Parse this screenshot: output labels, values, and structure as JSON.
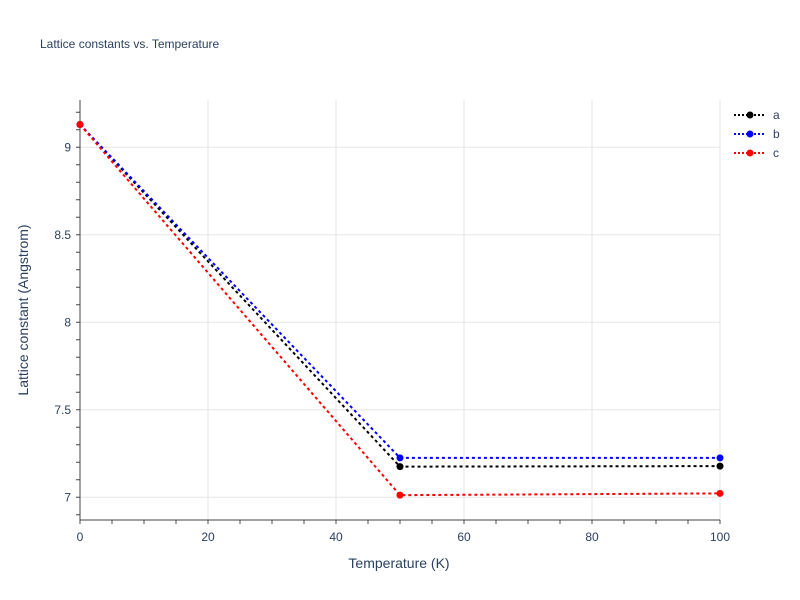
{
  "chart_data": {
    "type": "line",
    "title": "Lattice constants vs. Temperature",
    "xlabel": "Temperature (K)",
    "ylabel": "Lattice constant (Angstrom)",
    "xlim": [
      0,
      100
    ],
    "ylim": [
      6.87,
      9.27
    ],
    "xticks": [
      0,
      20,
      40,
      60,
      80,
      100
    ],
    "yticks": [
      7,
      7.5,
      8,
      8.5,
      9
    ],
    "grid": true,
    "legend_position": "top-right",
    "x": [
      0,
      50,
      100
    ],
    "series": [
      {
        "name": "a",
        "color": "#000000",
        "values": [
          9.13,
          7.175,
          7.178
        ]
      },
      {
        "name": "b",
        "color": "#0000ff",
        "values": [
          9.13,
          7.225,
          7.225
        ]
      },
      {
        "name": "c",
        "color": "#ff0000",
        "values": [
          9.13,
          7.012,
          7.022
        ]
      }
    ]
  }
}
